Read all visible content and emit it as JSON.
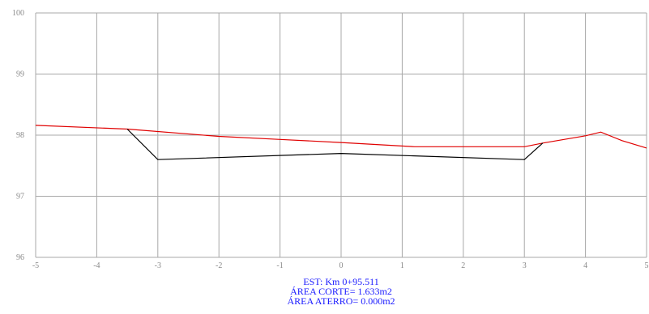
{
  "chart_data": {
    "type": "line",
    "title": "",
    "xlabel": "",
    "ylabel": "",
    "xlim": [
      -5,
      5
    ],
    "ylim": [
      96,
      100
    ],
    "x_ticks": [
      -5,
      -4,
      -3,
      -2,
      -1,
      0,
      1,
      2,
      3,
      4,
      5
    ],
    "y_ticks": [
      96,
      97,
      98,
      99,
      100
    ],
    "x_tick_labels": [
      "-5",
      "-4",
      "-3",
      "-2",
      "-1",
      "0",
      "1",
      "2",
      "3",
      "4",
      "5"
    ],
    "y_tick_labels": [
      "96",
      "97",
      "98",
      "99",
      "100"
    ],
    "grid": true,
    "series": [
      {
        "color": "#e00000",
        "x": [
          -5.0,
          -3.5,
          -2.0,
          -1.0,
          0.0,
          1.2,
          2.0,
          3.0,
          3.3,
          4.0,
          4.25,
          4.6,
          5.0
        ],
        "y": [
          98.16,
          98.1,
          97.98,
          97.93,
          97.88,
          97.81,
          97.81,
          97.81,
          97.87,
          97.99,
          98.05,
          97.91,
          97.79
        ]
      },
      {
        "color": "#000000",
        "x": [
          -3.5,
          -3.0,
          0.0,
          3.0,
          3.3
        ],
        "y": [
          98.1,
          97.6,
          97.7,
          97.6,
          97.87
        ]
      }
    ],
    "annotations": [
      "EST: Km 0+95.511",
      "ÁREA CORTE= 1.633m2",
      "ÁREA ATERRO= 0.000m2"
    ]
  }
}
